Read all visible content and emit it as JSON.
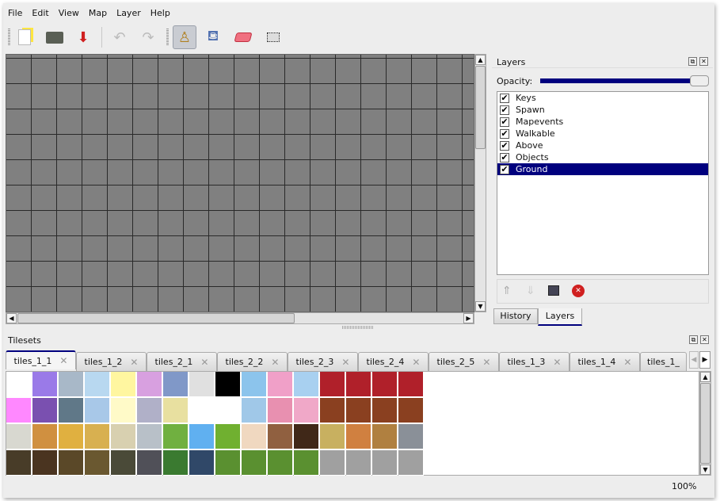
{
  "menu": [
    "File",
    "Edit",
    "View",
    "Map",
    "Layer",
    "Help"
  ],
  "toolbar": {
    "new": "new-file",
    "open": "open-folder",
    "save": "save",
    "undo": "undo",
    "redo": "redo",
    "stamp": "stamp-brush",
    "fill": "bucket-fill",
    "eraser": "eraser",
    "select": "rect-select"
  },
  "layers_panel": {
    "title": "Layers",
    "opacity_label": "Opacity:",
    "opacity": 100,
    "items": [
      {
        "name": "Keys",
        "visible": true
      },
      {
        "name": "Spawn",
        "visible": true
      },
      {
        "name": "Mapevents",
        "visible": true
      },
      {
        "name": "Walkable",
        "visible": true
      },
      {
        "name": "Above",
        "visible": true
      },
      {
        "name": "Objects",
        "visible": true
      },
      {
        "name": "Ground",
        "visible": true,
        "selected": true
      }
    ],
    "check": "✔"
  },
  "dock_tabs": [
    "History",
    "Layers"
  ],
  "tilesets": {
    "title": "Tilesets",
    "tabs": [
      "tiles_1_1",
      "tiles_1_2",
      "tiles_2_1",
      "tiles_2_2",
      "tiles_2_3",
      "tiles_2_4",
      "tiles_2_5",
      "tiles_1_3",
      "tiles_1_4",
      "tiles_1_"
    ],
    "tile_colors": [
      [
        "#ffffff",
        "#9a7ae8",
        "#a8b8c8",
        "#b8d8f0",
        "#fff6a0",
        "#d8a0e0",
        "#8098c8",
        "#e0e0e0",
        "#000000",
        "#8cc4ec",
        "#f0a0c8",
        "#a8d0f0",
        "#b0202a",
        "#b0202a",
        "#b0202a",
        "#b0202a"
      ],
      [
        "#ff88ff",
        "#7a50b0",
        "#607888",
        "#a8c8e8",
        "#fffac8",
        "#b0b0c8",
        "#e8e0a0",
        "#ffffff",
        "#ffffff",
        "#a0c8e8",
        "#e890b0",
        "#f0a8c8",
        "#8a4020",
        "#8a4020",
        "#8a4020",
        "#8a4020"
      ],
      [
        "#d8d8d0",
        "#d09040",
        "#e0b040",
        "#d8b050",
        "#d8d0b0",
        "#b8c0c8",
        "#70b040",
        "#60b0f0",
        "#70b030",
        "#f0d8c0",
        "#906040",
        "#402818",
        "#c8b060",
        "#d08040",
        "#b08040",
        "#8a9098"
      ],
      [
        "#483c28",
        "#4a3420",
        "#5a4828",
        "#6a5830",
        "#4a4a38",
        "#505058",
        "#3a7a30",
        "#304868",
        "#5a9030",
        "#5a9030",
        "#5a9030",
        "#5a9030",
        "#a0a0a0",
        "#a0a0a0",
        "#a0a0a0",
        "#a0a0a0"
      ]
    ]
  },
  "status": {
    "zoom": "100%"
  },
  "colors": {
    "accent": "#00007e",
    "map_bg": "#808080"
  }
}
